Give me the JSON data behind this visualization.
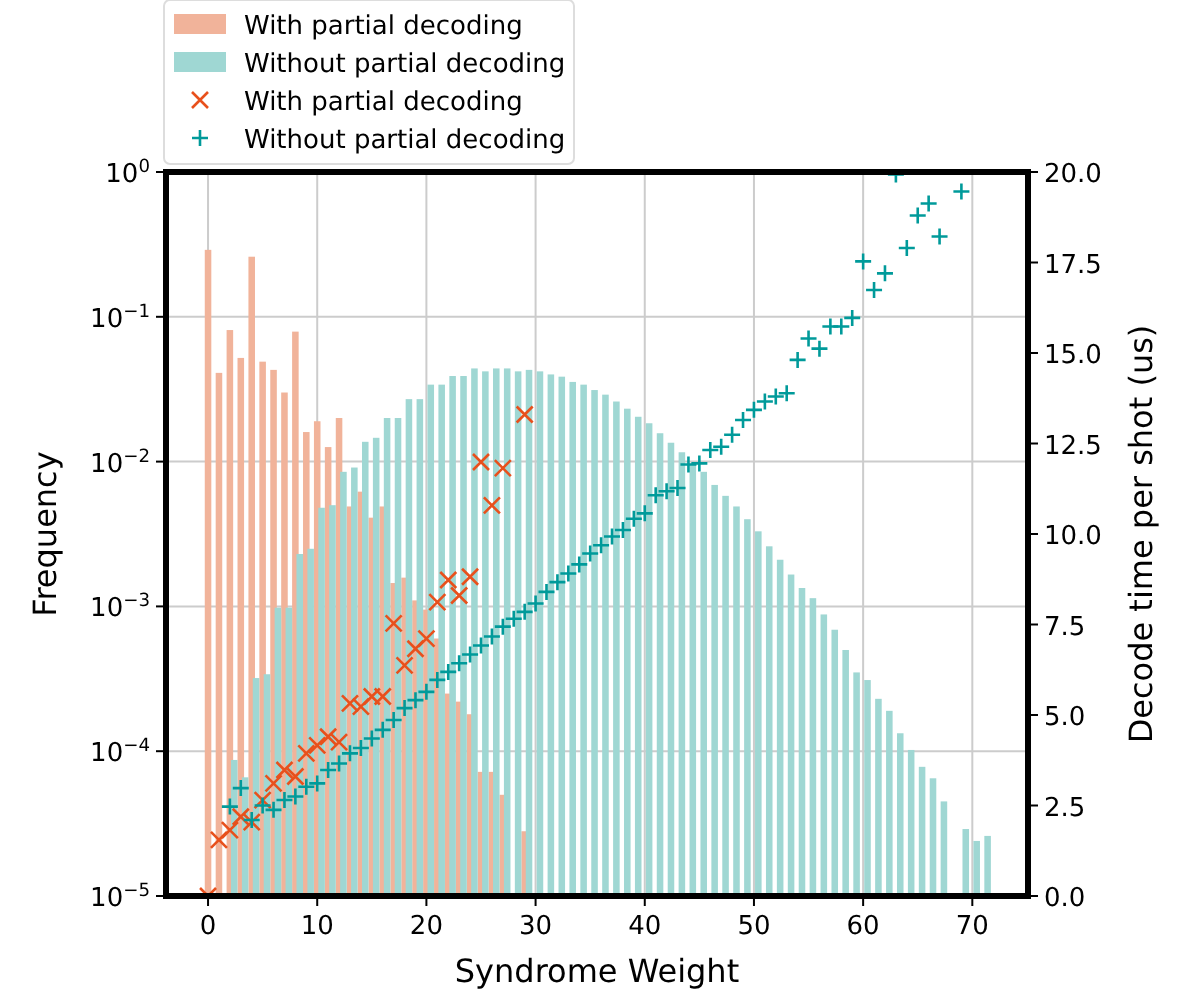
{
  "chart_data": {
    "type": "bar",
    "xlabel": "Syndrome Weight",
    "ylabel": "Frequency",
    "y2label": "Decode time per shot (us)",
    "xlim": [
      -3.85,
      75.1
    ],
    "xticks": [
      0,
      10,
      20,
      30,
      40,
      50,
      60,
      70
    ],
    "ylim": [
      1e-05,
      1
    ],
    "yticks": [
      {
        "value": 1e-05,
        "label": "10$^{−5}$"
      },
      {
        "value": 0.0001,
        "label": "10$^{−4}$"
      },
      {
        "value": 0.001,
        "label": "10$^{−3}$"
      },
      {
        "value": 0.01,
        "label": "10$^{−2}$"
      },
      {
        "value": 0.1,
        "label": "10$^{−1}$"
      },
      {
        "value": 1,
        "label": "10$^{0}$"
      }
    ],
    "y2lim": [
      0,
      20
    ],
    "y2ticks": [
      {
        "value": 0,
        "label": "0.0"
      },
      {
        "value": 2.5,
        "label": "2.5"
      },
      {
        "value": 5,
        "label": "5.0"
      },
      {
        "value": 7.5,
        "label": "7.5"
      },
      {
        "value": 10,
        "label": "10.0"
      },
      {
        "value": 12.5,
        "label": "12.5"
      },
      {
        "value": 15,
        "label": "15.0"
      },
      {
        "value": 17.5,
        "label": "17.5"
      },
      {
        "value": 20,
        "label": "20.0"
      }
    ],
    "log": "y",
    "grid": true,
    "legend": "top left",
    "series": [
      {
        "name": "With partial decoding",
        "color": "#f1b39a",
        "x": [
          0,
          1,
          2,
          3,
          4,
          5,
          6,
          7,
          8,
          9,
          10,
          11,
          12,
          13,
          14,
          15,
          16,
          17,
          18,
          19,
          20,
          21,
          22,
          23,
          24,
          25,
          26,
          27,
          29
        ],
        "values": [
          0.29,
          0.041,
          0.081,
          0.052,
          0.26,
          0.049,
          0.043,
          0.03,
          0.079,
          0.016,
          0.019,
          0.0126,
          0.02,
          0.0049,
          0.0062,
          0.0041,
          0.0049,
          0.00145,
          0.00158,
          0.0011,
          0.00095,
          0.0006,
          0.00025,
          0.00022,
          0.00018,
          7.2e-05,
          7.2e-05,
          5e-05,
          2.8e-05
        ]
      },
      {
        "name": "Without partial decoding",
        "color": "#9fd7d3",
        "x": [
          2.4,
          3.4,
          4.4,
          5.4,
          6.4,
          7.4,
          8.4,
          9.4,
          10.4,
          11.4,
          12.4,
          13.4,
          14.4,
          15.4,
          16.4,
          17.4,
          18.4,
          19.4,
          20.4,
          21.4,
          22.4,
          23.4,
          24.4,
          25.4,
          26.4,
          27.4,
          28.4,
          29.4,
          30.4,
          31.4,
          32.4,
          33.4,
          34.4,
          35.4,
          36.4,
          37.4,
          38.4,
          39.4,
          40.4,
          41.4,
          42.4,
          43.4,
          44.4,
          45.4,
          46.4,
          47.4,
          48.4,
          49.4,
          50.4,
          51.4,
          52.4,
          53.4,
          54.4,
          55.4,
          56.4,
          57.4,
          58.4,
          59.4,
          60.4,
          61.4,
          62.4,
          63.4,
          64.4,
          65.4,
          66.4,
          67.4,
          69.4,
          70.4,
          71.4
        ],
        "values": [
          8.7e-05,
          6.6e-05,
          0.00032,
          0.00034,
          0.00098,
          0.00098,
          0.0023,
          0.0025,
          0.0048,
          0.005,
          0.0085,
          0.0091,
          0.0137,
          0.0146,
          0.02,
          0.02,
          0.027,
          0.027,
          0.034,
          0.034,
          0.039,
          0.039,
          0.044,
          0.042,
          0.044,
          0.044,
          0.042,
          0.043,
          0.042,
          0.04,
          0.0386,
          0.0355,
          0.034,
          0.0312,
          0.029,
          0.026,
          0.0232,
          0.0204,
          0.0184,
          0.0157,
          0.0135,
          0.0116,
          0.0097,
          0.0085,
          0.0069,
          0.0058,
          0.0049,
          0.004,
          0.0033,
          0.0026,
          0.0021,
          0.00166,
          0.00134,
          0.00114,
          0.00088,
          0.00069,
          0.0005,
          0.00035,
          0.00031,
          0.00023,
          0.00019,
          0.000133,
          0.000102,
          7.8e-05,
          6.5e-05,
          4.5e-05,
          2.9e-05,
          2.4e-05,
          2.6e-05
        ]
      },
      {
        "type": "scatter",
        "axis": "y2",
        "marker": "cross",
        "name": "With partial decoding",
        "color": "#e8501c",
        "x": [
          0,
          1,
          2,
          3,
          4,
          5,
          6,
          7,
          8,
          9,
          10,
          11,
          12,
          13,
          14,
          15,
          16,
          17,
          18,
          19,
          20,
          21,
          22,
          23,
          24,
          25,
          26,
          27,
          29
        ],
        "values": [
          0,
          1.55,
          1.82,
          2.19,
          2.04,
          2.65,
          3.11,
          3.48,
          3.3,
          3.94,
          4.16,
          4.4,
          4.25,
          5.32,
          5.23,
          5.51,
          5.51,
          7.53,
          6.37,
          6.83,
          7.11,
          8.12,
          8.73,
          8.3,
          8.82,
          11.99,
          10.79,
          11.82,
          13.3
        ]
      },
      {
        "type": "scatter",
        "axis": "y2",
        "marker": "plus",
        "name": "Without partial decoding",
        "color": "#009a9a",
        "x": [
          2,
          3,
          4,
          5,
          6,
          7,
          8,
          9,
          10,
          11,
          12,
          13,
          14,
          15,
          16,
          17,
          18,
          19,
          20,
          21,
          22,
          23,
          24,
          25,
          26,
          27,
          28,
          29,
          30,
          31,
          32,
          33,
          34,
          35,
          36,
          37,
          38,
          39,
          40,
          41,
          42,
          43,
          44,
          45,
          46,
          47,
          48,
          49,
          50,
          51,
          52,
          53,
          54,
          55,
          56,
          57,
          58,
          59,
          60,
          61,
          62,
          63,
          64,
          65,
          66,
          67,
          69
        ],
        "values": [
          2.47,
          2.98,
          2.1,
          2.5,
          2.38,
          2.65,
          2.75,
          3.02,
          3.11,
          3.48,
          3.66,
          3.94,
          4.09,
          4.35,
          4.59,
          4.86,
          5.19,
          5.41,
          5.64,
          5.97,
          6.19,
          6.43,
          6.67,
          6.92,
          7.17,
          7.44,
          7.66,
          7.85,
          8.08,
          8.4,
          8.67,
          8.91,
          9.16,
          9.46,
          9.69,
          9.93,
          10.11,
          10.42,
          10.57,
          11.07,
          11.18,
          11.27,
          11.92,
          11.95,
          12.32,
          12.41,
          12.74,
          13.15,
          13.43,
          13.66,
          13.8,
          13.89,
          14.81,
          15.4,
          15.12,
          15.73,
          15.73,
          15.97,
          17.53,
          16.74,
          17.2,
          19.93,
          17.9,
          18.8,
          19.13,
          18.22,
          19.46
        ]
      }
    ]
  }
}
